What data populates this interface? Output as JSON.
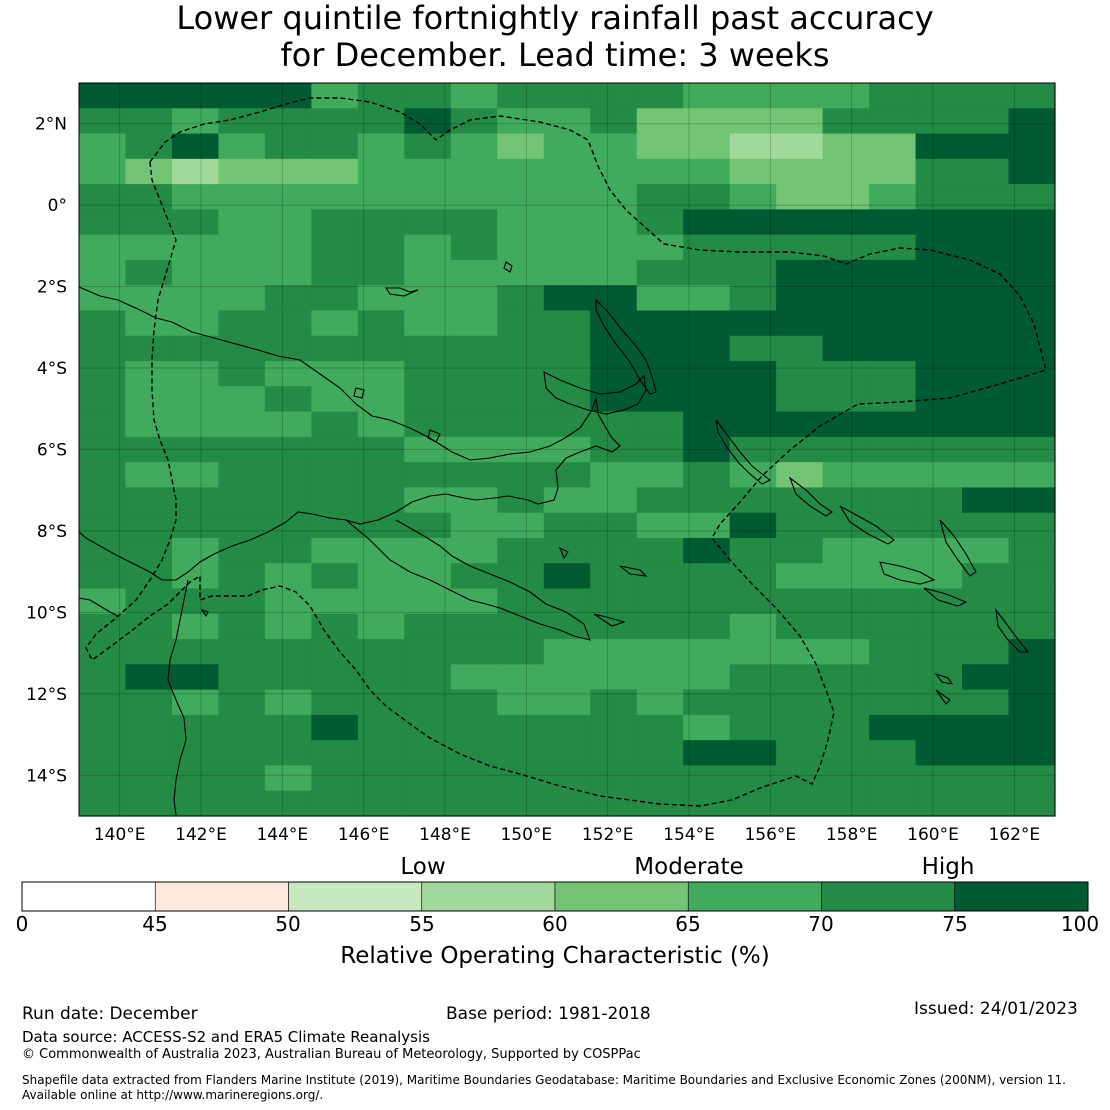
{
  "title": {
    "line1": "Lower quintile fortnightly rainfall past accuracy",
    "line2": "for December. Lead time: 3 weeks"
  },
  "map": {
    "lat_labels": [
      "2°N",
      "0°",
      "2°S",
      "4°S",
      "6°S",
      "8°S",
      "10°S",
      "12°S",
      "14°S"
    ],
    "lon_labels": [
      "140°E",
      "142°E",
      "144°E",
      "146°E",
      "148°E",
      "150°E",
      "152°E",
      "154°E",
      "156°E",
      "158°E",
      "160°E",
      "162°E"
    ],
    "lon_range": [
      139,
      163
    ],
    "lat_range": [
      -15,
      3
    ],
    "grid_rows": [
      "888886776777766667777",
      "776777787667555577778",
      "678677676566554455888",
      "654555666666665555778",
      "776666666666776556777",
      "777667777666788888888",
      "666667767666677777888",
      "676667766666777888888",
      "666677666788667888888",
      "766776766778888888888",
      "777777777778887788888",
      "766766677778888777888",
      "766676677778888777888",
      "766667677777788888888",
      "777777766667787777777",
      "766777777776676566666",
      "777777766766777777788",
      "777777776677668777777",
      "776776666777787766667",
      "776767667787777666677",
      "677766666777777777777",
      "776767677777776777777",
      "777777777766666667778",
      "788777776666667777788",
      "776767777667677777778",
      "777778777777767778888",
      "777777777777788777888",
      "777767777777777777777",
      "777777777777777777777"
    ],
    "colors": [
      "#ffffff",
      "#fee8de",
      "#c7e9c0",
      "#a1d99b",
      "#74c476",
      "#41ab5d",
      "#238b45",
      "#005a32"
    ],
    "level_map": {
      "4": 3,
      "5": 4,
      "6": 5,
      "7": 6,
      "8": 7
    }
  },
  "colorbar": {
    "headers": [
      "Low",
      "Moderate",
      "High"
    ],
    "ticks": [
      "0",
      "45",
      "50",
      "55",
      "60",
      "65",
      "70",
      "75",
      "100"
    ],
    "title": "Relative Operating Characteristic (%)",
    "colors": [
      "#ffffff",
      "#fee8de",
      "#c7e9c0",
      "#a1d99b",
      "#74c476",
      "#41ab5d",
      "#238b45",
      "#005a32"
    ]
  },
  "footer": {
    "run_date": "Run date: December",
    "base_period": "Base period: 1981-2018",
    "issued": "Issued: 24/01/2023",
    "data_source": "Data source: ACCESS-S2 and ERA5 Climate Reanalysis",
    "copyright": "© Commonwealth of Australia 2023, Australian Bureau of Meteorology, Supported by COSPPac",
    "shapefile_line1": "Shapefile data extracted from Flanders Marine Institute (2019), Maritime Boundaries Geodatabase: Maritime Boundaries and Exclusive Economic Zones (200NM), version 11.",
    "shapefile_line2": "Available online at http://www.marineregions.org/."
  }
}
